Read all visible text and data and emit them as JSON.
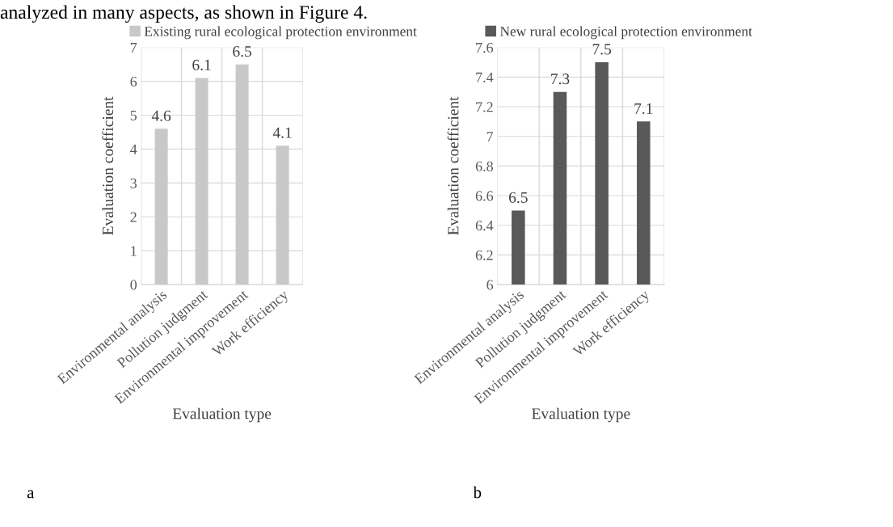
{
  "chart_data": [
    {
      "type": "bar",
      "xlabel": "Evaluation type",
      "ylabel": "Evaluation coefficient",
      "categories": [
        "Environmental analysis",
        "Pollution judgment",
        "Environmental improvement",
        "Work efficiency"
      ],
      "series": [
        {
          "name": "Existing rural ecological protection environment",
          "color": "#c8c8c8",
          "values": [
            4.6,
            6.1,
            6.5,
            4.1
          ]
        }
      ],
      "ylim": [
        0,
        7
      ],
      "yticks": [
        0,
        1,
        2,
        3,
        4,
        5,
        6,
        7
      ],
      "grid": true,
      "legend": "top",
      "data_labels": true,
      "annotations": [
        "analyzed in many aspects, as shown in Figure 4.",
        "a"
      ]
    },
    {
      "type": "bar",
      "xlabel": "Evaluation type",
      "ylabel": "Evaluation coefficient",
      "categories": [
        "Environmental analysis",
        "Pollution judgment",
        "Environmental improvement",
        "Work efficiency"
      ],
      "series": [
        {
          "name": "New rural ecological protection environment",
          "color": "#595959",
          "values": [
            6.5,
            7.3,
            7.5,
            7.1
          ]
        }
      ],
      "ylim": [
        6,
        7.6
      ],
      "yticks": [
        6,
        6.2,
        6.4,
        6.6,
        6.8,
        7,
        7.2,
        7.4,
        7.6
      ],
      "grid": true,
      "legend": "top",
      "data_labels": true,
      "annotations": [
        "b"
      ]
    }
  ]
}
